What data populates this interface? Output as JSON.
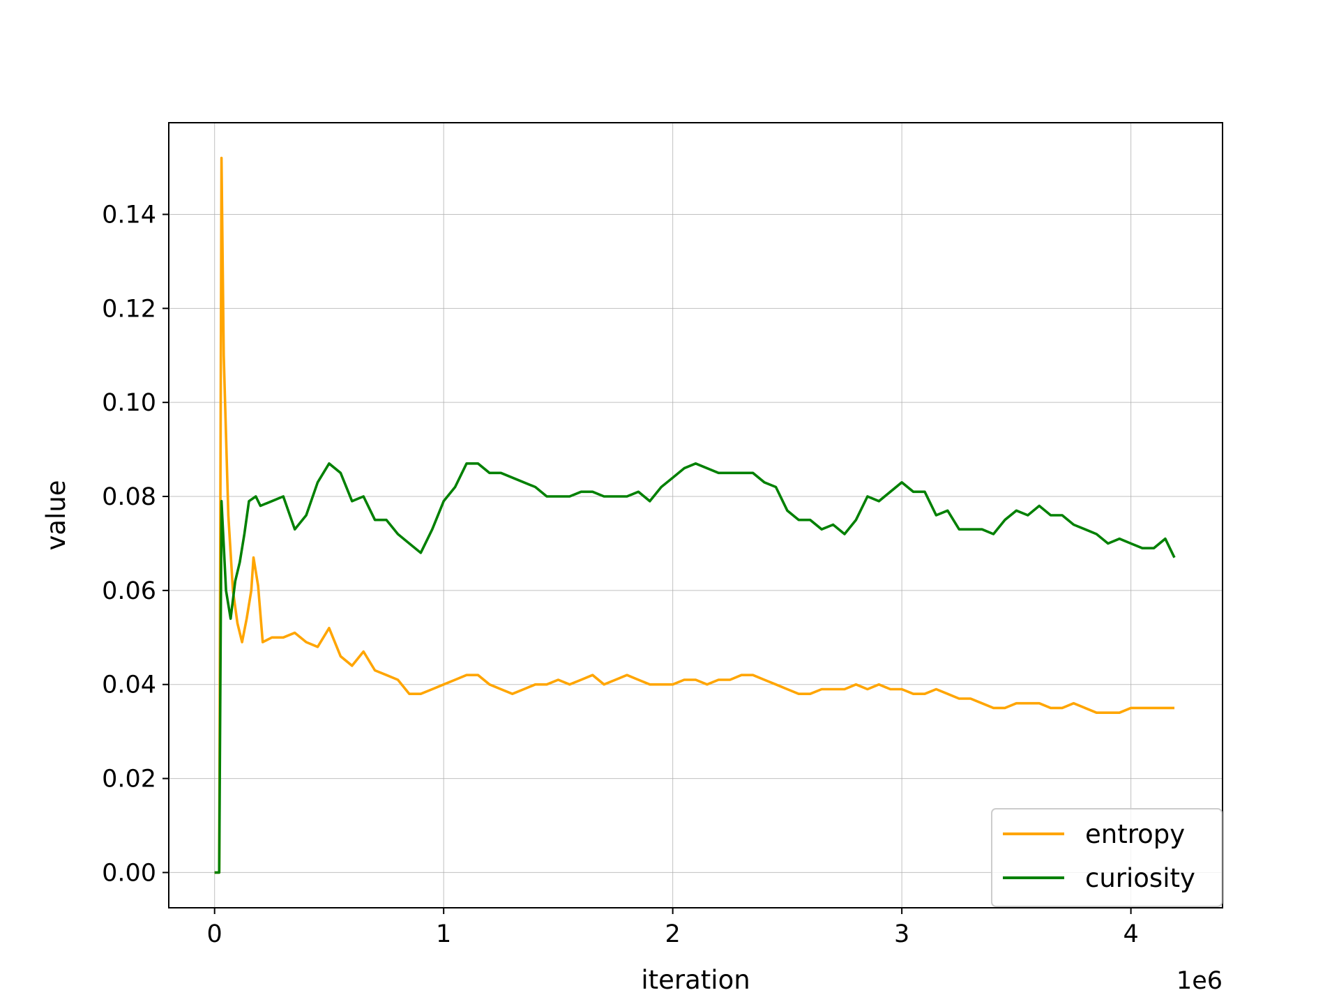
{
  "chart_data": {
    "type": "line",
    "xlabel": "iteration",
    "ylabel": "value",
    "x_offset_label": "1e6",
    "xlim": [
      -0.2,
      4.4
    ],
    "ylim": [
      -0.0075,
      0.1595
    ],
    "xticks": [
      0,
      1,
      2,
      3,
      4
    ],
    "xtick_labels": [
      "0",
      "1",
      "2",
      "3",
      "4"
    ],
    "yticks": [
      0.0,
      0.02,
      0.04,
      0.06,
      0.08,
      0.1,
      0.12,
      0.14
    ],
    "ytick_labels": [
      "0.00",
      "0.02",
      "0.04",
      "0.06",
      "0.08",
      "0.10",
      "0.12",
      "0.14"
    ],
    "grid": true,
    "legend_position": "lower-right",
    "series": [
      {
        "name": "entropy",
        "color": "#ffa500",
        "points": [
          [
            0.0,
            0.0
          ],
          [
            0.02,
            0.0
          ],
          [
            0.03,
            0.152
          ],
          [
            0.04,
            0.11
          ],
          [
            0.06,
            0.076
          ],
          [
            0.08,
            0.06
          ],
          [
            0.1,
            0.053
          ],
          [
            0.12,
            0.049
          ],
          [
            0.14,
            0.054
          ],
          [
            0.16,
            0.06
          ],
          [
            0.17,
            0.067
          ],
          [
            0.19,
            0.061
          ],
          [
            0.21,
            0.049
          ],
          [
            0.25,
            0.05
          ],
          [
            0.3,
            0.05
          ],
          [
            0.35,
            0.051
          ],
          [
            0.4,
            0.049
          ],
          [
            0.45,
            0.048
          ],
          [
            0.5,
            0.052
          ],
          [
            0.55,
            0.046
          ],
          [
            0.6,
            0.044
          ],
          [
            0.65,
            0.047
          ],
          [
            0.7,
            0.043
          ],
          [
            0.75,
            0.042
          ],
          [
            0.8,
            0.041
          ],
          [
            0.85,
            0.038
          ],
          [
            0.9,
            0.038
          ],
          [
            0.95,
            0.039
          ],
          [
            1.0,
            0.04
          ],
          [
            1.05,
            0.041
          ],
          [
            1.1,
            0.042
          ],
          [
            1.15,
            0.042
          ],
          [
            1.2,
            0.04
          ],
          [
            1.25,
            0.039
          ],
          [
            1.3,
            0.038
          ],
          [
            1.35,
            0.039
          ],
          [
            1.4,
            0.04
          ],
          [
            1.45,
            0.04
          ],
          [
            1.5,
            0.041
          ],
          [
            1.55,
            0.04
          ],
          [
            1.6,
            0.041
          ],
          [
            1.65,
            0.042
          ],
          [
            1.7,
            0.04
          ],
          [
            1.75,
            0.041
          ],
          [
            1.8,
            0.042
          ],
          [
            1.85,
            0.041
          ],
          [
            1.9,
            0.04
          ],
          [
            1.95,
            0.04
          ],
          [
            2.0,
            0.04
          ],
          [
            2.05,
            0.041
          ],
          [
            2.1,
            0.041
          ],
          [
            2.15,
            0.04
          ],
          [
            2.2,
            0.041
          ],
          [
            2.25,
            0.041
          ],
          [
            2.3,
            0.042
          ],
          [
            2.35,
            0.042
          ],
          [
            2.4,
            0.041
          ],
          [
            2.45,
            0.04
          ],
          [
            2.5,
            0.039
          ],
          [
            2.55,
            0.038
          ],
          [
            2.6,
            0.038
          ],
          [
            2.65,
            0.039
          ],
          [
            2.7,
            0.039
          ],
          [
            2.75,
            0.039
          ],
          [
            2.8,
            0.04
          ],
          [
            2.85,
            0.039
          ],
          [
            2.9,
            0.04
          ],
          [
            2.95,
            0.039
          ],
          [
            3.0,
            0.039
          ],
          [
            3.05,
            0.038
          ],
          [
            3.1,
            0.038
          ],
          [
            3.15,
            0.039
          ],
          [
            3.2,
            0.038
          ],
          [
            3.25,
            0.037
          ],
          [
            3.3,
            0.037
          ],
          [
            3.35,
            0.036
          ],
          [
            3.4,
            0.035
          ],
          [
            3.45,
            0.035
          ],
          [
            3.5,
            0.036
          ],
          [
            3.55,
            0.036
          ],
          [
            3.6,
            0.036
          ],
          [
            3.65,
            0.035
          ],
          [
            3.7,
            0.035
          ],
          [
            3.75,
            0.036
          ],
          [
            3.8,
            0.035
          ],
          [
            3.85,
            0.034
          ],
          [
            3.9,
            0.034
          ],
          [
            3.95,
            0.034
          ],
          [
            4.0,
            0.035
          ],
          [
            4.05,
            0.035
          ],
          [
            4.1,
            0.035
          ],
          [
            4.15,
            0.035
          ],
          [
            4.19,
            0.035
          ]
        ]
      },
      {
        "name": "curiosity",
        "color": "#008000",
        "points": [
          [
            0.0,
            0.0
          ],
          [
            0.02,
            0.0
          ],
          [
            0.03,
            0.079
          ],
          [
            0.05,
            0.06
          ],
          [
            0.07,
            0.054
          ],
          [
            0.09,
            0.062
          ],
          [
            0.11,
            0.066
          ],
          [
            0.13,
            0.072
          ],
          [
            0.15,
            0.079
          ],
          [
            0.18,
            0.08
          ],
          [
            0.2,
            0.078
          ],
          [
            0.25,
            0.079
          ],
          [
            0.3,
            0.08
          ],
          [
            0.35,
            0.073
          ],
          [
            0.4,
            0.076
          ],
          [
            0.45,
            0.083
          ],
          [
            0.5,
            0.087
          ],
          [
            0.55,
            0.085
          ],
          [
            0.6,
            0.079
          ],
          [
            0.65,
            0.08
          ],
          [
            0.7,
            0.075
          ],
          [
            0.75,
            0.075
          ],
          [
            0.8,
            0.072
          ],
          [
            0.85,
            0.07
          ],
          [
            0.9,
            0.068
          ],
          [
            0.95,
            0.073
          ],
          [
            1.0,
            0.079
          ],
          [
            1.05,
            0.082
          ],
          [
            1.1,
            0.087
          ],
          [
            1.15,
            0.087
          ],
          [
            1.2,
            0.085
          ],
          [
            1.25,
            0.085
          ],
          [
            1.3,
            0.084
          ],
          [
            1.35,
            0.083
          ],
          [
            1.4,
            0.082
          ],
          [
            1.45,
            0.08
          ],
          [
            1.5,
            0.08
          ],
          [
            1.55,
            0.08
          ],
          [
            1.6,
            0.081
          ],
          [
            1.65,
            0.081
          ],
          [
            1.7,
            0.08
          ],
          [
            1.75,
            0.08
          ],
          [
            1.8,
            0.08
          ],
          [
            1.85,
            0.081
          ],
          [
            1.9,
            0.079
          ],
          [
            1.95,
            0.082
          ],
          [
            2.0,
            0.084
          ],
          [
            2.05,
            0.086
          ],
          [
            2.1,
            0.087
          ],
          [
            2.15,
            0.086
          ],
          [
            2.2,
            0.085
          ],
          [
            2.25,
            0.085
          ],
          [
            2.3,
            0.085
          ],
          [
            2.35,
            0.085
          ],
          [
            2.4,
            0.083
          ],
          [
            2.45,
            0.082
          ],
          [
            2.5,
            0.077
          ],
          [
            2.55,
            0.075
          ],
          [
            2.6,
            0.075
          ],
          [
            2.65,
            0.073
          ],
          [
            2.7,
            0.074
          ],
          [
            2.75,
            0.072
          ],
          [
            2.8,
            0.075
          ],
          [
            2.85,
            0.08
          ],
          [
            2.9,
            0.079
          ],
          [
            2.95,
            0.081
          ],
          [
            3.0,
            0.083
          ],
          [
            3.05,
            0.081
          ],
          [
            3.1,
            0.081
          ],
          [
            3.15,
            0.076
          ],
          [
            3.2,
            0.077
          ],
          [
            3.25,
            0.073
          ],
          [
            3.3,
            0.073
          ],
          [
            3.35,
            0.073
          ],
          [
            3.4,
            0.072
          ],
          [
            3.45,
            0.075
          ],
          [
            3.5,
            0.077
          ],
          [
            3.55,
            0.076
          ],
          [
            3.6,
            0.078
          ],
          [
            3.65,
            0.076
          ],
          [
            3.7,
            0.076
          ],
          [
            3.75,
            0.074
          ],
          [
            3.8,
            0.073
          ],
          [
            3.85,
            0.072
          ],
          [
            3.9,
            0.07
          ],
          [
            3.95,
            0.071
          ],
          [
            4.0,
            0.07
          ],
          [
            4.05,
            0.069
          ],
          [
            4.1,
            0.069
          ],
          [
            4.15,
            0.071
          ],
          [
            4.19,
            0.067
          ]
        ]
      }
    ]
  }
}
